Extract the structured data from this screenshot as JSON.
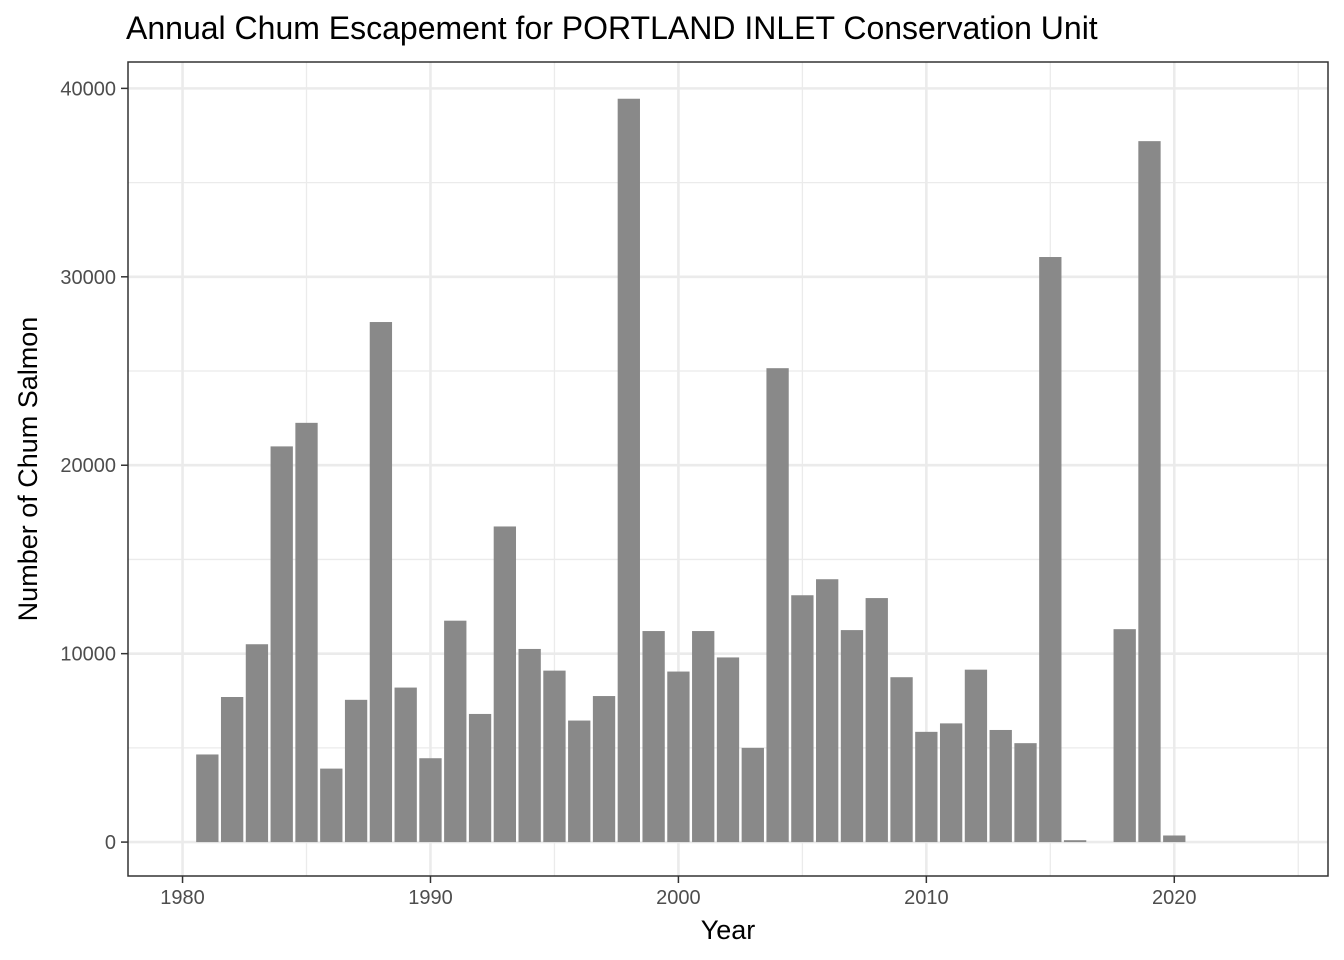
{
  "chart_data": {
    "type": "bar",
    "title": "Annual Chum Escapement for PORTLAND INLET Conservation Unit",
    "xlabel": "Year",
    "ylabel": "Number of Chum Salmon",
    "x": [
      1981,
      1982,
      1983,
      1984,
      1985,
      1986,
      1987,
      1988,
      1989,
      1990,
      1991,
      1992,
      1993,
      1994,
      1995,
      1996,
      1997,
      1998,
      1999,
      2000,
      2001,
      2002,
      2003,
      2004,
      2005,
      2006,
      2007,
      2008,
      2009,
      2010,
      2011,
      2012,
      2013,
      2014,
      2015,
      2016,
      2018,
      2019,
      2020
    ],
    "values": [
      4650,
      7700,
      10500,
      21000,
      22250,
      3900,
      7550,
      27600,
      8200,
      4450,
      11750,
      6800,
      16750,
      10250,
      9100,
      6450,
      7750,
      39450,
      11200,
      9050,
      11200,
      9800,
      5000,
      25150,
      13100,
      13950,
      11250,
      12950,
      8750,
      5850,
      6300,
      9150,
      5950,
      5250,
      31050,
      100,
      11300,
      37200,
      350
    ],
    "xlim": [
      1977.8,
      2026.2
    ],
    "ylim": [
      -1800,
      41400
    ],
    "x_ticks": [
      "1980",
      "1990",
      "2000",
      "2010",
      "2020"
    ],
    "y_ticks": [
      "0",
      "10000",
      "20000",
      "30000",
      "40000"
    ],
    "bar_color": "#898989",
    "grid": true,
    "theme": "bw"
  }
}
